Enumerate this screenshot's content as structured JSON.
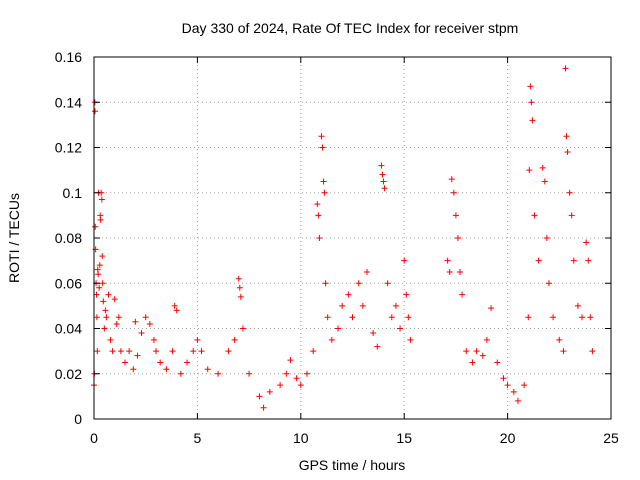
{
  "chart_data": {
    "type": "scatter",
    "title": "Day 330 of 2024, Rate Of TEC Index for receiver stpm",
    "xlabel": "GPS time / hours",
    "ylabel": "ROTI / TECUs",
    "xlim": [
      0,
      25
    ],
    "ylim": [
      0,
      0.16
    ],
    "grid": true,
    "marker": "+",
    "series_color": "#ff0000",
    "x_ticks": [
      0,
      5,
      10,
      15,
      20,
      25
    ],
    "x_tick_labels": [
      "0",
      "5",
      "10",
      "15",
      "20",
      "25"
    ],
    "y_ticks": [
      0,
      0.02,
      0.04,
      0.06,
      0.08,
      0.1,
      0.12,
      0.14,
      0.16
    ],
    "y_tick_labels": [
      "0",
      "0.02",
      "0.04",
      "0.06",
      "0.08",
      "0.1",
      "0.12",
      "0.14",
      "0.16"
    ],
    "series": [
      {
        "name": "ROTI",
        "points": [
          [
            0.0,
            0.015
          ],
          [
            0.02,
            0.02
          ],
          [
            0.04,
            0.14
          ],
          [
            0.05,
            0.136
          ],
          [
            0.06,
            0.085
          ],
          [
            0.08,
            0.075
          ],
          [
            0.1,
            0.06
          ],
          [
            0.12,
            0.055
          ],
          [
            0.14,
            0.045
          ],
          [
            0.16,
            0.03
          ],
          [
            0.18,
            0.066
          ],
          [
            0.2,
            0.064
          ],
          [
            0.22,
            0.1
          ],
          [
            0.25,
            0.058
          ],
          [
            0.28,
            0.068
          ],
          [
            0.3,
            0.09
          ],
          [
            0.32,
            0.088
          ],
          [
            0.35,
            0.1
          ],
          [
            0.38,
            0.097
          ],
          [
            0.4,
            0.072
          ],
          [
            0.42,
            0.06
          ],
          [
            0.45,
            0.052
          ],
          [
            0.5,
            0.04
          ],
          [
            0.55,
            0.048
          ],
          [
            0.6,
            0.045
          ],
          [
            0.7,
            0.055
          ],
          [
            0.8,
            0.035
          ],
          [
            0.9,
            0.03
          ],
          [
            1.0,
            0.053
          ],
          [
            1.1,
            0.042
          ],
          [
            1.2,
            0.045
          ],
          [
            1.3,
            0.03
          ],
          [
            1.5,
            0.025
          ],
          [
            1.7,
            0.03
          ],
          [
            1.9,
            0.022
          ],
          [
            2.0,
            0.043
          ],
          [
            2.1,
            0.028
          ],
          [
            2.3,
            0.038
          ],
          [
            2.5,
            0.045
          ],
          [
            2.7,
            0.042
          ],
          [
            2.9,
            0.035
          ],
          [
            3.0,
            0.03
          ],
          [
            3.2,
            0.025
          ],
          [
            3.5,
            0.022
          ],
          [
            3.8,
            0.03
          ],
          [
            3.9,
            0.05
          ],
          [
            4.0,
            0.048
          ],
          [
            4.2,
            0.02
          ],
          [
            4.5,
            0.025
          ],
          [
            4.8,
            0.03
          ],
          [
            5.0,
            0.035
          ],
          [
            5.2,
            0.03
          ],
          [
            5.5,
            0.022
          ],
          [
            6.0,
            0.02
          ],
          [
            6.5,
            0.03
          ],
          [
            6.8,
            0.035
          ],
          [
            7.0,
            0.062
          ],
          [
            7.05,
            0.058
          ],
          [
            7.1,
            0.054
          ],
          [
            7.2,
            0.04
          ],
          [
            7.5,
            0.02
          ],
          [
            8.0,
            0.01
          ],
          [
            8.2,
            0.005
          ],
          [
            8.5,
            0.012
          ],
          [
            9.0,
            0.015
          ],
          [
            9.3,
            0.02
          ],
          [
            9.5,
            0.026
          ],
          [
            9.8,
            0.018
          ],
          [
            10.0,
            0.015
          ],
          [
            10.3,
            0.02
          ],
          [
            10.6,
            0.03
          ],
          [
            10.8,
            0.095
          ],
          [
            10.85,
            0.09
          ],
          [
            10.9,
            0.08
          ],
          [
            11.0,
            0.125
          ],
          [
            11.05,
            0.12
          ],
          [
            11.1,
            0.105
          ],
          [
            11.15,
            0.1
          ],
          [
            11.2,
            0.06
          ],
          [
            11.3,
            0.045
          ],
          [
            11.5,
            0.035
          ],
          [
            11.8,
            0.04
          ],
          [
            12.0,
            0.05
          ],
          [
            12.3,
            0.055
          ],
          [
            12.5,
            0.045
          ],
          [
            12.8,
            0.06
          ],
          [
            13.0,
            0.05
          ],
          [
            13.2,
            0.065
          ],
          [
            13.5,
            0.038
          ],
          [
            13.7,
            0.032
          ],
          [
            13.9,
            0.112
          ],
          [
            13.95,
            0.108
          ],
          [
            14.0,
            0.105
          ],
          [
            14.05,
            0.102
          ],
          [
            14.2,
            0.06
          ],
          [
            14.4,
            0.045
          ],
          [
            14.6,
            0.05
          ],
          [
            14.8,
            0.04
          ],
          [
            15.0,
            0.07
          ],
          [
            15.1,
            0.055
          ],
          [
            15.2,
            0.045
          ],
          [
            15.3,
            0.035
          ],
          [
            17.1,
            0.07
          ],
          [
            17.2,
            0.065
          ],
          [
            17.3,
            0.106
          ],
          [
            17.4,
            0.1
          ],
          [
            17.5,
            0.09
          ],
          [
            17.6,
            0.08
          ],
          [
            17.7,
            0.065
          ],
          [
            17.8,
            0.055
          ],
          [
            18.0,
            0.03
          ],
          [
            18.3,
            0.025
          ],
          [
            18.5,
            0.03
          ],
          [
            18.8,
            0.028
          ],
          [
            19.0,
            0.035
          ],
          [
            19.2,
            0.049
          ],
          [
            19.5,
            0.025
          ],
          [
            19.8,
            0.018
          ],
          [
            20.0,
            0.015
          ],
          [
            20.3,
            0.012
          ],
          [
            20.5,
            0.008
          ],
          [
            20.8,
            0.015
          ],
          [
            21.0,
            0.045
          ],
          [
            21.05,
            0.11
          ],
          [
            21.1,
            0.147
          ],
          [
            21.15,
            0.14
          ],
          [
            21.2,
            0.132
          ],
          [
            21.3,
            0.09
          ],
          [
            21.5,
            0.07
          ],
          [
            21.7,
            0.111
          ],
          [
            21.8,
            0.105
          ],
          [
            21.9,
            0.08
          ],
          [
            22.0,
            0.06
          ],
          [
            22.2,
            0.045
          ],
          [
            22.5,
            0.035
          ],
          [
            22.7,
            0.03
          ],
          [
            22.8,
            0.155
          ],
          [
            22.85,
            0.125
          ],
          [
            22.9,
            0.118
          ],
          [
            23.0,
            0.1
          ],
          [
            23.1,
            0.09
          ],
          [
            23.2,
            0.07
          ],
          [
            23.4,
            0.05
          ],
          [
            23.6,
            0.045
          ],
          [
            23.8,
            0.078
          ],
          [
            23.9,
            0.07
          ],
          [
            24.0,
            0.045
          ],
          [
            24.1,
            0.03
          ]
        ]
      }
    ]
  }
}
